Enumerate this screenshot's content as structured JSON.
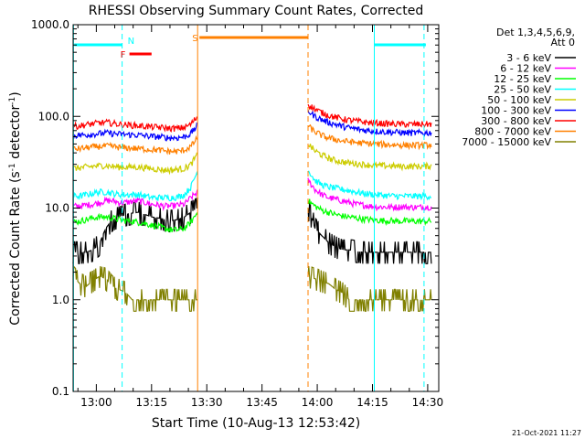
{
  "chart_data": {
    "type": "line",
    "title": "RHESSI Observing Summary Count Rates, Corrected",
    "xlabel": "Start Time (10-Aug-13 12:53:42)",
    "ylabel_main": "Corrected Count Rate (s",
    "ylabel_sup1": "-1",
    "ylabel_mid": " detector",
    "ylabel_sup2": "-1",
    "ylabel_end": ")",
    "y_scale": "log",
    "ylim": [
      0.1,
      1000
    ],
    "xlim": [
      "12:53:42",
      "14:33:00"
    ],
    "y_ticks": [
      0.1,
      1.0,
      10.0,
      100.0,
      1000.0
    ],
    "y_tick_labels": [
      "0.1",
      "1.0",
      "10.0",
      "100.0",
      "1000.0"
    ],
    "x_ticks": [
      "13:00",
      "13:15",
      "13:30",
      "13:45",
      "14:00",
      "14:15",
      "14:30"
    ],
    "x_tick_minutes": [
      780,
      795,
      810,
      825,
      840,
      855,
      870
    ],
    "legend_title_1": "Det 1,3,4,5,6,9,",
    "legend_title_2": "Att 0",
    "legend_placement": "right",
    "series": [
      {
        "name": "3 - 6 keV",
        "color": "#000000",
        "pre": [
          3.3,
          3.3,
          3.3,
          3.5,
          4.0,
          6.0,
          7.5,
          8.0,
          8.5,
          8.8,
          9.0,
          8.5,
          8.0,
          7.8,
          7.5,
          7.3,
          7.5,
          8.0,
          9.0,
          10.0
        ],
        "post": [
          10.0,
          6.0,
          5.0,
          4.2,
          3.8,
          3.5,
          3.5,
          3.4,
          3.3,
          3.3,
          3.3,
          3.3,
          3.3,
          3.3,
          3.3,
          3.3,
          3.3,
          3.3,
          3.3
        ]
      },
      {
        "name": "6 - 12 keV",
        "color": "#ff00ff",
        "pre": [
          10.5,
          10.5,
          10.8,
          11.0,
          11.5,
          12.0,
          12.0,
          11.5,
          11.5,
          11.8,
          12.0,
          11.5,
          11.0,
          10.8,
          10.5,
          10.5,
          10.8,
          11.0,
          13.0,
          15.0
        ],
        "post": [
          20.0,
          16.0,
          14.0,
          13.0,
          12.5,
          12.0,
          11.5,
          11.0,
          10.8,
          10.5,
          10.3,
          10.3,
          10.2,
          10.3,
          10.3,
          10.2,
          10.2,
          10.3,
          10.3
        ]
      },
      {
        "name": "12 - 25 keV",
        "color": "#00ff00",
        "pre": [
          7.0,
          7.2,
          7.5,
          7.8,
          8.0,
          8.0,
          7.8,
          7.5,
          7.3,
          7.2,
          7.0,
          6.8,
          6.5,
          6.3,
          6.0,
          5.8,
          5.8,
          6.0,
          7.0,
          9.0
        ],
        "post": [
          12.0,
          10.5,
          9.5,
          9.0,
          8.5,
          8.2,
          8.0,
          7.8,
          7.6,
          7.5,
          7.4,
          7.3,
          7.3,
          7.2,
          7.2,
          7.2,
          7.2,
          7.2,
          7.2
        ]
      },
      {
        "name": "25 - 50 keV",
        "color": "#00ffff",
        "pre": [
          13.5,
          13.5,
          14.0,
          14.5,
          15.0,
          15.0,
          14.5,
          14.0,
          14.0,
          14.0,
          14.0,
          13.5,
          13.0,
          13.0,
          13.0,
          13.0,
          13.2,
          14.0,
          17.0,
          25.0
        ],
        "post": [
          26.0,
          20.0,
          18.0,
          17.0,
          16.5,
          16.0,
          15.5,
          15.0,
          14.5,
          14.2,
          14.0,
          13.8,
          13.6,
          13.5,
          13.5,
          13.5,
          13.5,
          13.5,
          13.5
        ]
      },
      {
        "name": "50 - 100 keV",
        "color": "#cccc00",
        "pre": [
          27.0,
          27.5,
          28.0,
          28.5,
          29.0,
          29.0,
          28.5,
          28.0,
          28.0,
          28.0,
          28.0,
          27.5,
          27.0,
          26.5,
          26.0,
          26.0,
          26.5,
          27.0,
          30.0,
          38.0
        ],
        "post": [
          50.0,
          42.0,
          38.0,
          35.0,
          33.0,
          32.0,
          31.0,
          30.5,
          30.0,
          29.5,
          29.0,
          29.0,
          28.8,
          28.5,
          28.5,
          28.5,
          28.5,
          28.5,
          29.0
        ]
      },
      {
        "name": "100 - 300 keV",
        "color": "#0000ff",
        "pre": [
          62.0,
          62.5,
          63.0,
          64.0,
          65.0,
          66.0,
          65.0,
          64.0,
          63.5,
          63.0,
          62.5,
          61.5,
          60.5,
          60.0,
          59.0,
          58.5,
          58.5,
          60.0,
          65.0,
          80.0
        ],
        "post": [
          115.0,
          100.0,
          92.0,
          86.0,
          82.0,
          78.0,
          75.0,
          73.0,
          71.0,
          70.0,
          69.0,
          68.0,
          67.5,
          67.0,
          66.5,
          66.0,
          66.0,
          66.0,
          66.5
        ]
      },
      {
        "name": "300 - 800 keV",
        "color": "#ff0000",
        "pre": [
          78.0,
          79.0,
          81.0,
          83.0,
          85.0,
          86.0,
          84.0,
          82.0,
          81.0,
          80.0,
          79.0,
          78.0,
          77.0,
          76.0,
          75.0,
          74.0,
          74.0,
          76.0,
          82.0,
          100.0
        ],
        "post": [
          135.0,
          120.0,
          110.0,
          103.0,
          98.0,
          94.0,
          91.0,
          89.0,
          87.0,
          85.5,
          84.5,
          83.5,
          83.0,
          82.5,
          82.0,
          82.0,
          82.0,
          82.0,
          82.5
        ]
      },
      {
        "name": "800 - 7000 keV",
        "color": "#ff8000",
        "pre": [
          44.0,
          44.5,
          45.5,
          46.5,
          47.0,
          47.5,
          47.0,
          46.0,
          45.5,
          45.0,
          44.5,
          44.0,
          43.5,
          43.0,
          42.0,
          41.5,
          41.5,
          43.0,
          47.0,
          58.0
        ],
        "post": [
          78.0,
          68.0,
          62.0,
          58.0,
          56.0,
          54.0,
          53.0,
          52.0,
          51.0,
          50.5,
          50.0,
          49.5,
          49.0,
          49.0,
          48.5,
          48.5,
          48.5,
          48.5,
          49.0
        ]
      },
      {
        "name": "7000 - 15000 keV",
        "color": "#808000",
        "pre": [
          1.8,
          1.5,
          1.4,
          1.6,
          1.8,
          1.7,
          1.4,
          1.3,
          1.2,
          1.0,
          1.0,
          1.0,
          1.0,
          1.0,
          1.0,
          1.0,
          1.0,
          1.0,
          1.0,
          1.0
        ],
        "post": [
          1.8,
          1.7,
          1.6,
          1.5,
          1.3,
          1.2,
          1.0,
          1.0,
          1.0,
          1.0,
          1.0,
          1.0,
          1.0,
          1.0,
          1.0,
          1.0,
          1.0,
          1.0,
          1.0
        ]
      }
    ],
    "pre_range": [
      "12:53:42",
      "13:27:30"
    ],
    "post_range": [
      "13:57:30",
      "14:31:00"
    ],
    "vertical_markers": [
      {
        "time": "12:53:48",
        "color": "#00ffff",
        "style": "solid"
      },
      {
        "time": "13:07:00",
        "color": "#00ffff",
        "style": "dashed"
      },
      {
        "time": "13:27:30",
        "color": "#ff8000",
        "style": "solid"
      },
      {
        "time": "13:57:30",
        "color": "#ff8000",
        "style": "dashed"
      },
      {
        "time": "14:15:30",
        "color": "#00ffff",
        "style": "solid"
      },
      {
        "time": "14:29:00",
        "color": "#00ffff",
        "style": "dashed"
      }
    ],
    "flag_bars": [
      {
        "label": "N",
        "color": "#00ffff",
        "start": "12:54:00",
        "end": "13:07:00",
        "row": 1
      },
      {
        "label": "F",
        "color": "#ff0000",
        "start": "13:09:00",
        "end": "13:15:00",
        "row": 2
      },
      {
        "label": "S",
        "color": "#ff8000",
        "start": "13:28:00",
        "end": "13:57:30",
        "row": 0
      },
      {
        "label": "",
        "color": "#00ffff",
        "start": "14:15:30",
        "end": "14:29:30",
        "row": 1
      }
    ]
  },
  "footer": {
    "timestamp": "21-Oct-2021 11:27"
  }
}
